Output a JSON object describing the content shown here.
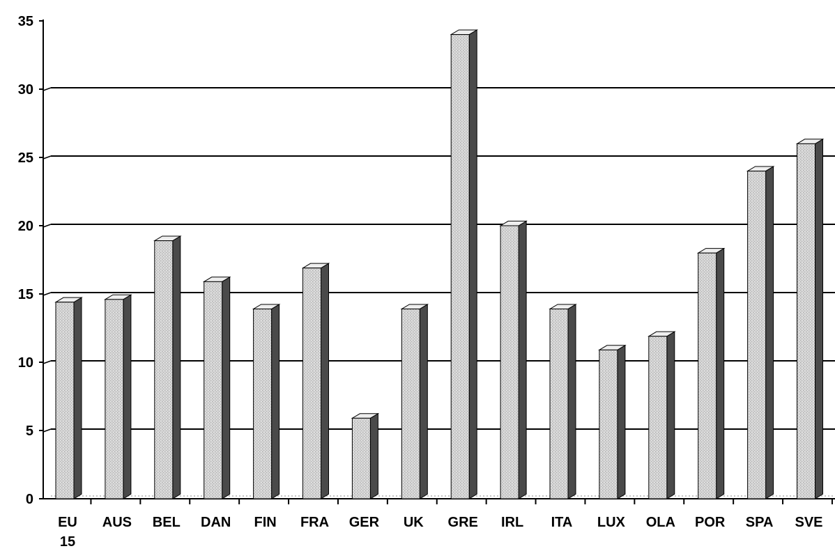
{
  "colors": {
    "background": "#ffffff",
    "axis": "#000000",
    "grid": "#000000",
    "bar_front": "#d4d4d4",
    "bar_top": "#eeeeee",
    "bar_side": "#4a4a4a"
  },
  "chart_data": {
    "type": "bar",
    "title": "",
    "xlabel": "",
    "ylabel": "",
    "ylim": [
      0,
      35
    ],
    "y_ticks": [
      0,
      5,
      10,
      15,
      20,
      25,
      30,
      35
    ],
    "grid": true,
    "categories": [
      [
        "EU",
        "15"
      ],
      [
        "AUS"
      ],
      [
        "BEL"
      ],
      [
        "DAN"
      ],
      [
        "FIN"
      ],
      [
        "FRA"
      ],
      [
        "GER"
      ],
      [
        "UK"
      ],
      [
        "GRE"
      ],
      [
        "IRL"
      ],
      [
        "ITA"
      ],
      [
        "LUX"
      ],
      [
        "OLA"
      ],
      [
        "POR"
      ],
      [
        "SPA"
      ],
      [
        "SVE"
      ]
    ],
    "values": [
      14.4,
      14.6,
      18.9,
      15.9,
      13.9,
      16.9,
      5.9,
      13.9,
      34.0,
      20.0,
      13.9,
      10.9,
      11.9,
      18.0,
      24.0,
      26.0
    ]
  }
}
